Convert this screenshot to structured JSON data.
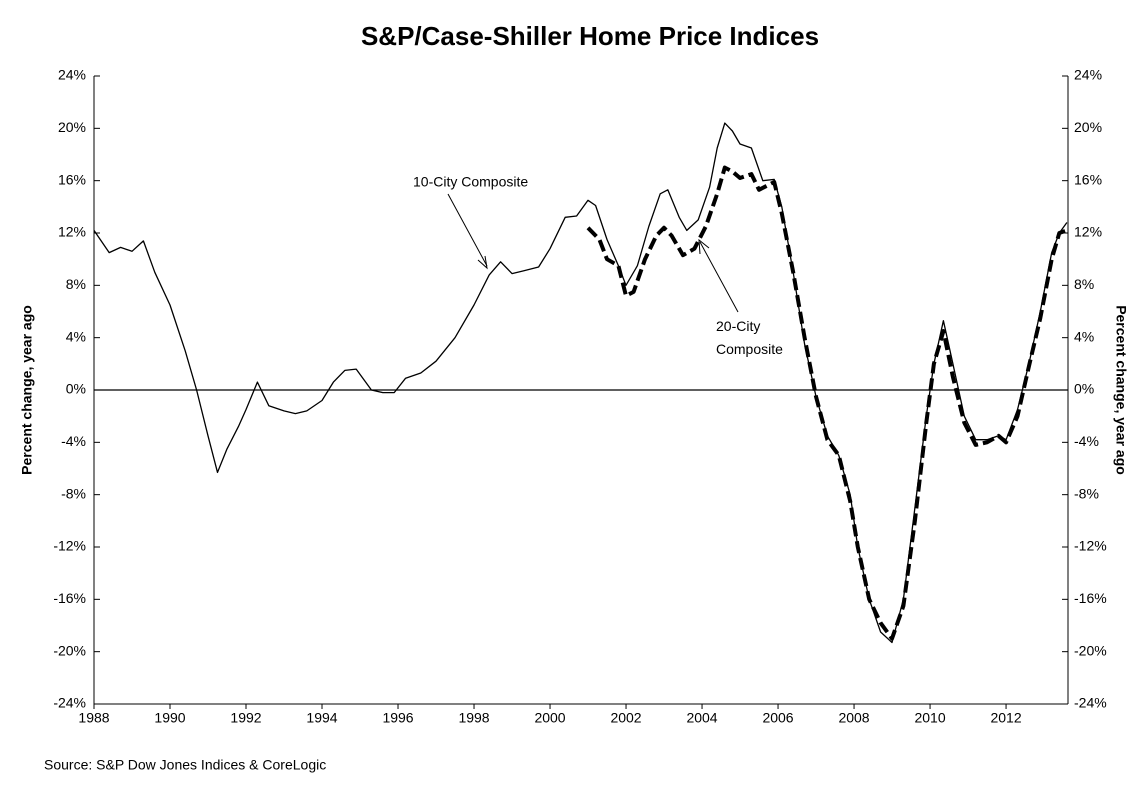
{
  "chart_data": {
    "type": "line",
    "title": "S&P/Case-Shiller Home Price Indices",
    "source": "Source: S&P Dow Jones Indices & CoreLogic",
    "ylabel": "Percent change, year ago",
    "y2label": "Percent change, year ago",
    "xlim": [
      1988,
      2013.63
    ],
    "xticks": [
      1988,
      1990,
      1992,
      1994,
      1996,
      1998,
      2000,
      2002,
      2004,
      2006,
      2008,
      2010,
      2012
    ],
    "ylim": [
      -24,
      24
    ],
    "yticks": [
      {
        "value": -24,
        "label": "-24%"
      },
      {
        "value": -20,
        "label": "-20%"
      },
      {
        "value": -16,
        "label": "-16%"
      },
      {
        "value": -12,
        "label": "-12%"
      },
      {
        "value": -8,
        "label": "-8%"
      },
      {
        "value": -4,
        "label": "-4%"
      },
      {
        "value": 0,
        "label": "0%"
      },
      {
        "value": 4,
        "label": "4%"
      },
      {
        "value": 8,
        "label": "8%"
      },
      {
        "value": 12,
        "label": "12%"
      },
      {
        "value": 16,
        "label": "16%"
      },
      {
        "value": 20,
        "label": "20%"
      },
      {
        "value": 24,
        "label": "24%"
      }
    ],
    "y2lim": [
      -24,
      24
    ],
    "y2ticks": [
      {
        "value": -24,
        "label": "-24%"
      },
      {
        "value": -20,
        "label": "-20%"
      },
      {
        "value": -16,
        "label": "-16%"
      },
      {
        "value": -12,
        "label": "-12%"
      },
      {
        "value": -8,
        "label": "-8%"
      },
      {
        "value": -4,
        "label": "-4%"
      },
      {
        "value": 0,
        "label": "0%"
      },
      {
        "value": 4,
        "label": "4%"
      },
      {
        "value": 8,
        "label": "8%"
      },
      {
        "value": 12,
        "label": "12%"
      },
      {
        "value": 16,
        "label": "16%"
      },
      {
        "value": 20,
        "label": "20%"
      },
      {
        "value": 24,
        "label": "24%"
      }
    ],
    "zero_line": true,
    "series": [
      {
        "name": "10-City Composite",
        "color": "#000000",
        "dashed": false,
        "x": [
          1988.0,
          1988.4,
          1988.7,
          1989.0,
          1989.3,
          1989.6,
          1990.0,
          1990.4,
          1990.7,
          1991.0,
          1991.25,
          1991.5,
          1991.8,
          1992.0,
          1992.3,
          1992.6,
          1993.0,
          1993.3,
          1993.6,
          1994.0,
          1994.3,
          1994.6,
          1994.9,
          1995.3,
          1995.6,
          1995.9,
          1996.2,
          1996.6,
          1997.0,
          1997.5,
          1998.0,
          1998.4,
          1998.7,
          1999.0,
          1999.3,
          1999.7,
          2000.0,
          2000.4,
          2000.7,
          2001.0,
          2001.2,
          2001.5,
          2001.8,
          2002.0,
          2002.3,
          2002.6,
          2002.9,
          2003.1,
          2003.4,
          2003.6,
          2003.9,
          2004.2,
          2004.4,
          2004.6,
          2004.8,
          2005.0,
          2005.3,
          2005.6,
          2005.9,
          2006.1,
          2006.4,
          2006.7,
          2007.0,
          2007.3,
          2007.6,
          2007.9,
          2008.1,
          2008.4,
          2008.7,
          2009.0,
          2009.3,
          2009.6,
          2009.9,
          2010.1,
          2010.35,
          2010.6,
          2010.9,
          2011.2,
          2011.5,
          2011.8,
          2012.0,
          2012.3,
          2012.6,
          2012.9,
          2013.2,
          2013.4,
          2013.6
        ],
        "values": [
          12.2,
          10.5,
          10.9,
          10.6,
          11.4,
          9,
          6.5,
          3,
          0,
          -3.5,
          -6.3,
          -4.5,
          -2.8,
          -1.5,
          0.6,
          -1.2,
          -1.6,
          -1.8,
          -1.6,
          -0.8,
          0.6,
          1.5,
          1.6,
          0,
          -0.2,
          -0.2,
          0.9,
          1.3,
          2.2,
          4,
          6.5,
          8.8,
          9.8,
          8.9,
          9.1,
          9.4,
          10.8,
          13.2,
          13.3,
          14.5,
          14.1,
          11.5,
          9.5,
          8,
          9.5,
          12.5,
          15,
          15.3,
          13.2,
          12.2,
          13,
          15.5,
          18.5,
          20.4,
          19.8,
          18.8,
          18.5,
          16,
          16.1,
          14,
          9,
          3.5,
          -0.5,
          -3.5,
          -5,
          -8,
          -12,
          -16,
          -18.5,
          -19.3,
          -16,
          -9,
          -2,
          2,
          5.3,
          2,
          -2,
          -3.8,
          -3.8,
          -3.5,
          -3.8,
          -1.5,
          2,
          6,
          10.5,
          12,
          12.8
        ]
      },
      {
        "name": "20-City Composite",
        "color": "#000000",
        "dashed": true,
        "x": [
          2001.0,
          2001.3,
          2001.5,
          2001.8,
          2002.0,
          2002.2,
          2002.5,
          2002.8,
          2003.0,
          2003.2,
          2003.5,
          2003.8,
          2004.1,
          2004.4,
          2004.6,
          2004.8,
          2005.0,
          2005.3,
          2005.5,
          2005.9,
          2006.1,
          2006.4,
          2006.7,
          2007.0,
          2007.3,
          2007.6,
          2007.9,
          2008.1,
          2008.4,
          2008.7,
          2009.0,
          2009.3,
          2009.6,
          2009.9,
          2010.1,
          2010.35,
          2010.6,
          2010.9,
          2011.2,
          2011.5,
          2011.8,
          2012.0,
          2012.3,
          2012.6,
          2012.9,
          2013.2,
          2013.4,
          2013.6
        ],
        "values": [
          12.4,
          11.5,
          10,
          9.5,
          7.2,
          7.5,
          10,
          11.8,
          12.4,
          11.8,
          10.3,
          10.8,
          12.5,
          15,
          17,
          16.7,
          16.2,
          16.5,
          15.3,
          15.9,
          13.5,
          9,
          4,
          -0.5,
          -3.8,
          -5,
          -8.5,
          -12,
          -16,
          -17.8,
          -19,
          -16.5,
          -10,
          -2.5,
          2,
          4.5,
          1,
          -2.5,
          -4.2,
          -4,
          -3.5,
          -4,
          -2,
          1.8,
          5.5,
          10,
          12,
          12.2
        ]
      }
    ]
  }
}
